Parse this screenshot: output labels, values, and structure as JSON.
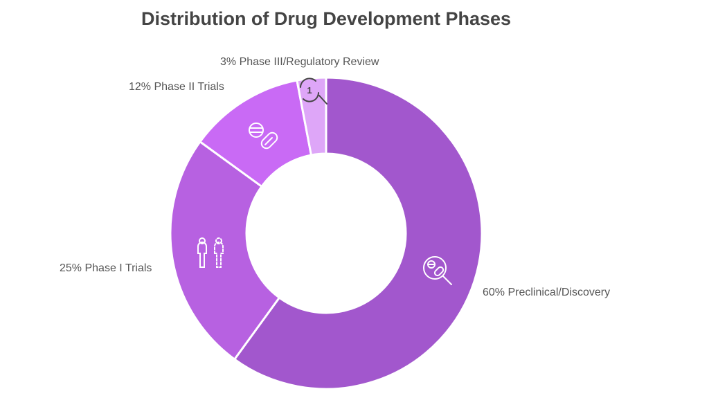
{
  "chart_data": {
    "type": "pie",
    "subtype": "donut",
    "title": "Distribution of Drug Development Phases",
    "start": "top",
    "direction": "clockwise",
    "slices": [
      {
        "label": "Preclinical/Discovery",
        "value": 60,
        "display": "60% Preclinical/Discovery",
        "color": "#A257CD",
        "icon": "pills-magnifier-icon"
      },
      {
        "label": "Phase I Trials",
        "value": 25,
        "display": "25% Phase I Trials",
        "color": "#B761E1",
        "icon": "people-icon"
      },
      {
        "label": "Phase II Trials",
        "value": 12,
        "display": "12% Phase II Trials",
        "color": "#C96AF5",
        "icon": "pill-capsule-icon"
      },
      {
        "label": "Phase III/Regulatory Review",
        "value": 3,
        "display": "3% Phase III/Regulatory Review",
        "color": "#DEA6F8",
        "icon": "magnifier-cycle-icon"
      }
    ]
  }
}
